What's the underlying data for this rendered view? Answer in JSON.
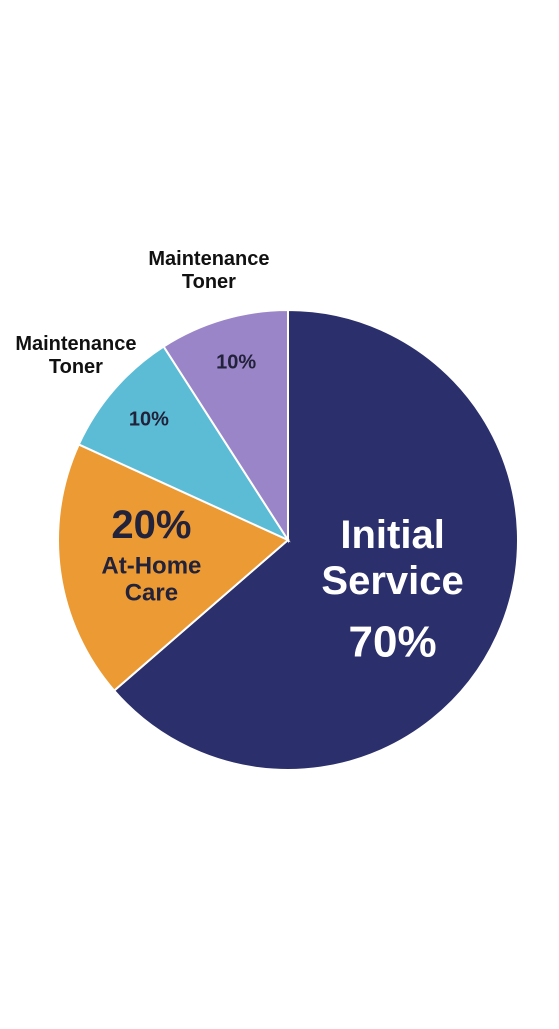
{
  "chart_data": {
    "type": "pie",
    "categories": [
      "Initial Service",
      "At-Home Care",
      "Maintenance Toner",
      "Maintenance Toner"
    ],
    "values": [
      70,
      20,
      10,
      10
    ],
    "value_labels": [
      "70%",
      "20%",
      "10%",
      "10%"
    ],
    "colors": [
      "#2b2f6b",
      "#ec9a34",
      "#5cbcd6",
      "#9b85c9"
    ]
  }
}
